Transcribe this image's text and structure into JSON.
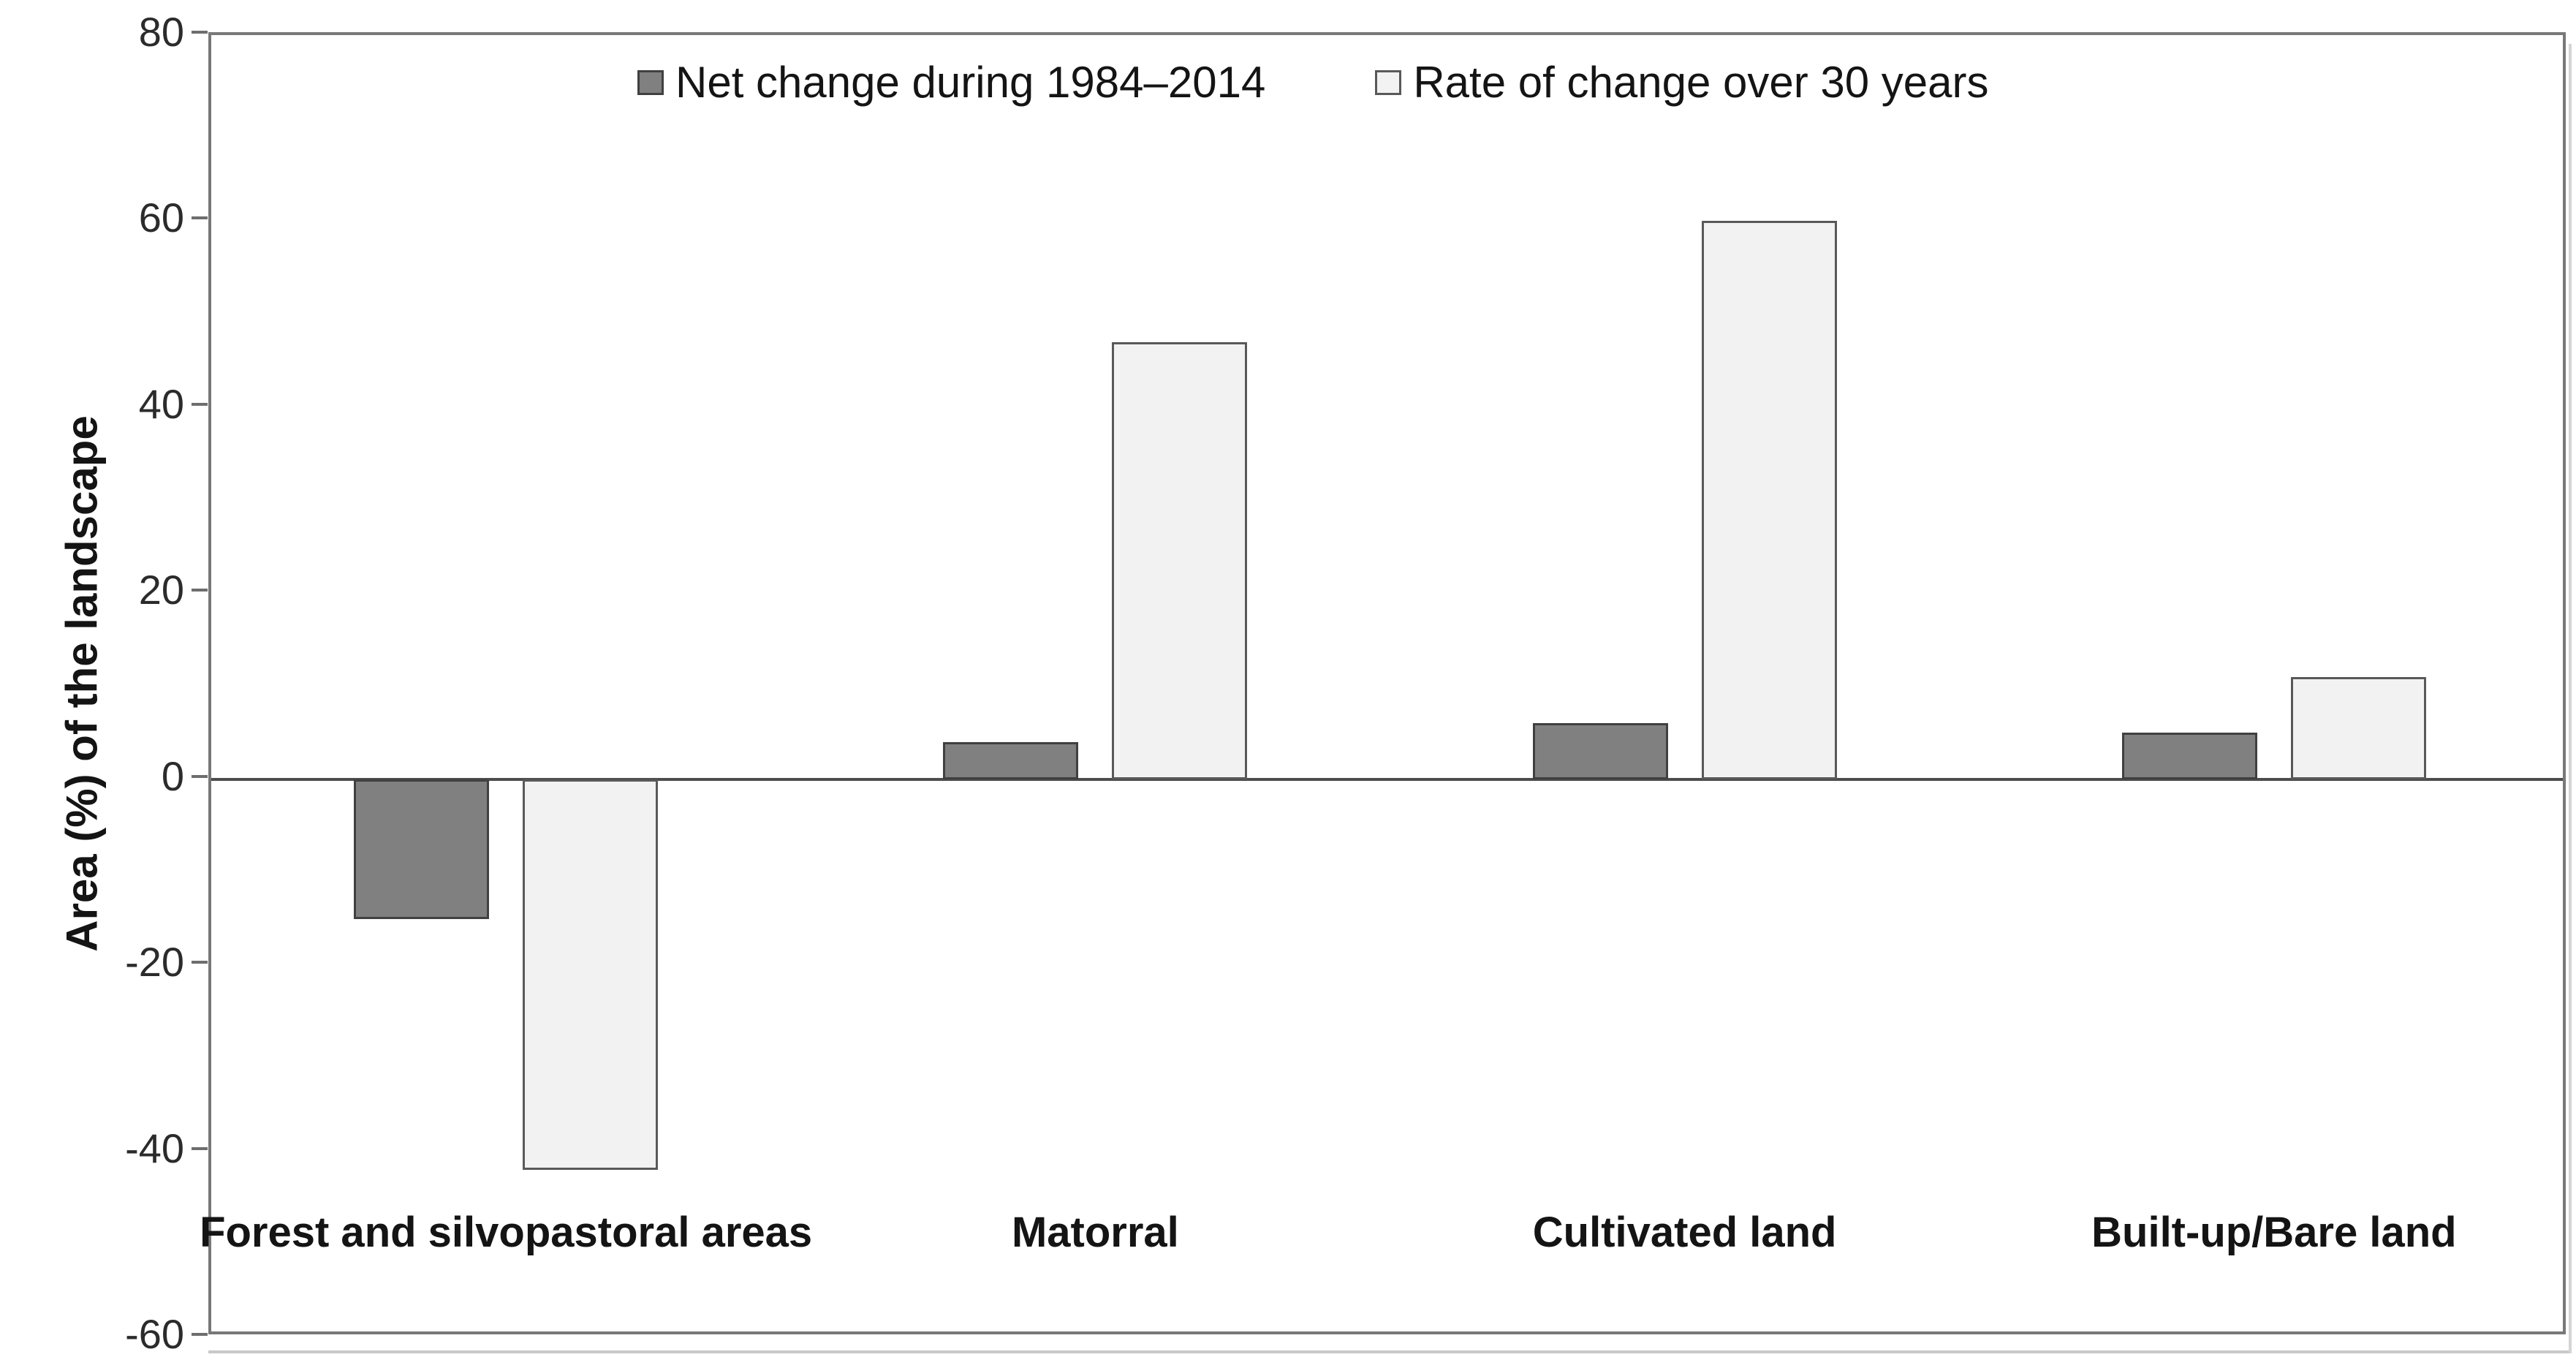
{
  "chart_data": {
    "type": "bar",
    "title": "",
    "ylabel": "Area (%) of the landscape",
    "xlabel": "",
    "categories": [
      "Forest and silvopastoral areas",
      "Matorral",
      "Cultivated land",
      "Built-up/Bare land"
    ],
    "series": [
      {
        "name": "Net change during 1984–2014",
        "values": [
          -15,
          4,
          6,
          5
        ],
        "fill": "#808080",
        "border": "#404040"
      },
      {
        "name": "Rate of change over 30 years",
        "values": [
          -42,
          47,
          60,
          11
        ],
        "fill": "#f2f2f2",
        "border": "#595959"
      }
    ],
    "ylim": [
      -60,
      80
    ],
    "ytick_step": 20,
    "yticks": [
      80,
      60,
      40,
      20,
      0,
      -20,
      -40,
      -60
    ],
    "grid": false,
    "legend_position": "top-inside",
    "zero_line_color": "#4d4d4d",
    "frame_color": "#787878",
    "background_color": "#ffffff"
  }
}
